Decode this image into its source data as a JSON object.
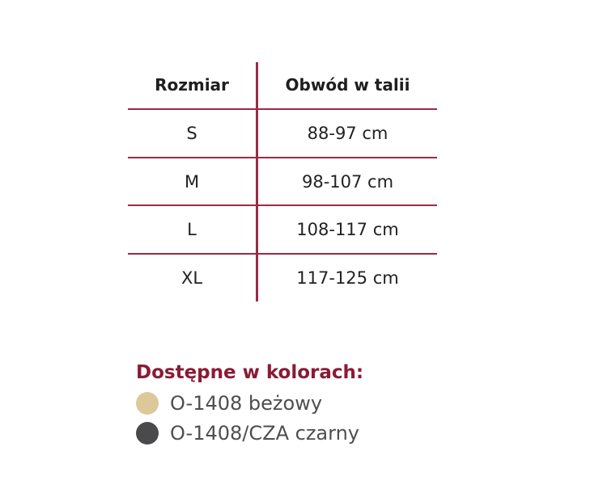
{
  "table": {
    "headers": [
      "Rozmiar",
      "Obwód w talii"
    ],
    "rows": [
      {
        "size": "S",
        "waist": "88-97 cm"
      },
      {
        "size": "M",
        "waist": "98-107 cm"
      },
      {
        "size": "L",
        "waist": "108-117 cm"
      },
      {
        "size": "XL",
        "waist": "117-125 cm"
      }
    ],
    "line_color": "#9b2b45"
  },
  "colors": {
    "title": "Dostępne w kolorach:",
    "items": [
      {
        "label": "O-1408 beżowy",
        "swatch": "#dcc99a"
      },
      {
        "label": "O-1408/CZA czarny",
        "swatch": "#4a4a4c"
      }
    ]
  }
}
